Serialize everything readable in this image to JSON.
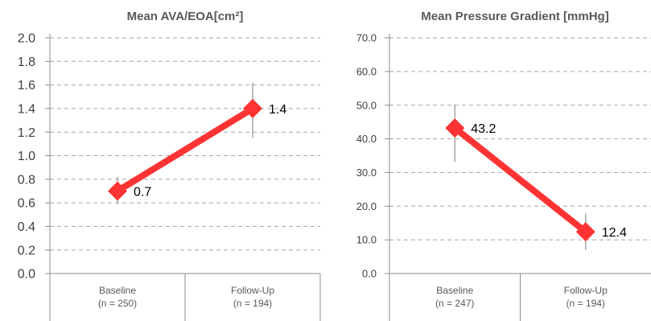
{
  "colors": {
    "line": "#ff3333",
    "marker": "#ff3333",
    "errorbar": "#a6a6a6",
    "grid": "#a6a6a6",
    "axis": "#8c8c8c"
  },
  "chart_data": [
    {
      "type": "line",
      "title": "Mean AVA/EOA[cm²]",
      "ylim": [
        0,
        2.0
      ],
      "yticks": [
        "0.0",
        "0.2",
        "0.4",
        "0.6",
        "0.8",
        "1.0",
        "1.2",
        "1.4",
        "1.6",
        "1.8",
        "2.0"
      ],
      "categories": [
        {
          "label": "Baseline",
          "n_label": "(n = 250)"
        },
        {
          "label": "Follow-Up",
          "n_label": "(n = 194)"
        }
      ],
      "series": [
        {
          "values": [
            0.7,
            1.4
          ],
          "error_low": [
            0.59,
            1.15
          ],
          "error_high": [
            0.82,
            1.62
          ],
          "data_labels": [
            "0.7",
            "1.4"
          ]
        }
      ],
      "grid": true
    },
    {
      "type": "line",
      "title": "Mean Pressure Gradient [mmHg]",
      "ylim": [
        0,
        70.0
      ],
      "yticks": [
        "0.0",
        "10.0",
        "20.0",
        "30.0",
        "40.0",
        "50.0",
        "60.0",
        "70.0"
      ],
      "categories": [
        {
          "label": "Baseline",
          "n_label": "(n = 247)"
        },
        {
          "label": "Follow-Up",
          "n_label": "(n = 194)"
        }
      ],
      "series": [
        {
          "values": [
            43.2,
            12.4
          ],
          "error_low": [
            33.2,
            7.0
          ],
          "error_high": [
            50.2,
            17.8
          ],
          "data_labels": [
            "43.2",
            "12.4"
          ]
        }
      ],
      "grid": true
    }
  ]
}
